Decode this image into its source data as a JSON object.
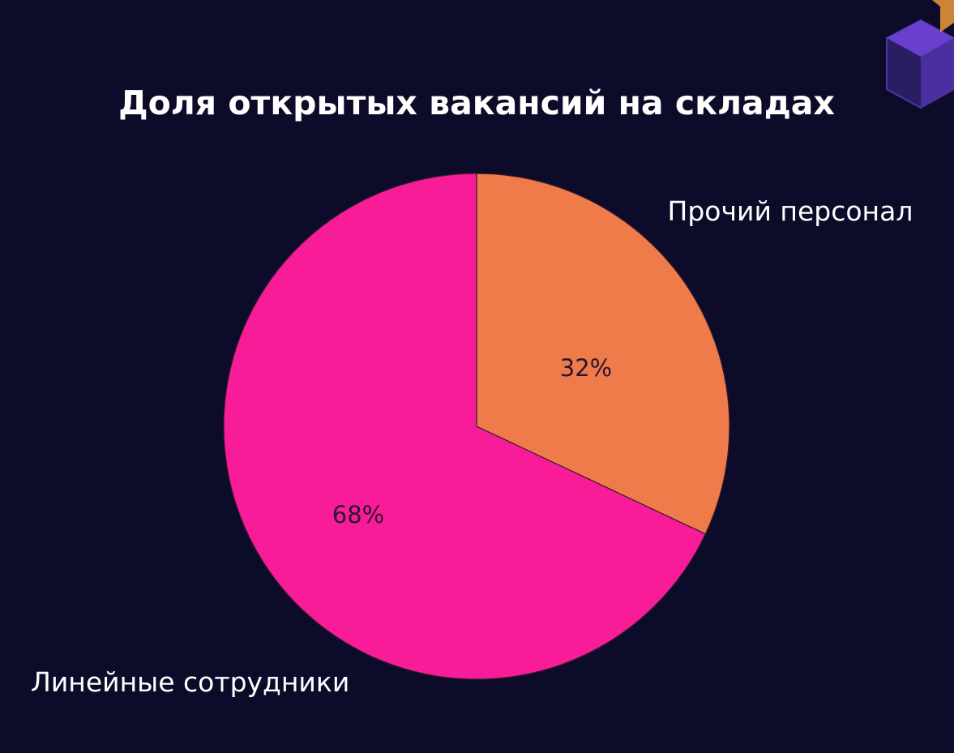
{
  "chart_data": {
    "type": "pie",
    "title": "Доля открытых вакансий на складах",
    "slices": [
      {
        "label": "Прочий персонал",
        "value": 32,
        "display": "32%",
        "color": "#ef7b4a"
      },
      {
        "label": "Линейные сотрудники",
        "value": 68,
        "display": "68%",
        "color": "#f81c98"
      }
    ],
    "start": "12 o'clock",
    "direction": "clockwise",
    "legend": "none",
    "labels": "outside-and-inside"
  },
  "decoration": {
    "logo_icon": "hexagon-cube-logo-icon",
    "logo_color": "#6a3fd0",
    "accent_color": "#f09a3a",
    "background_color": "#0c0b29"
  }
}
